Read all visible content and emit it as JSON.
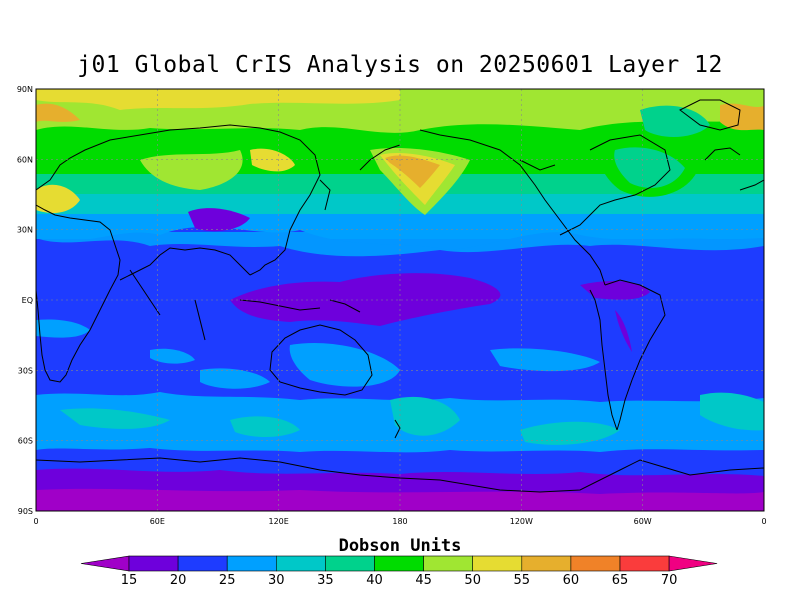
{
  "title": "j01 Global CrIS Analysis on 20250601 Layer 12",
  "map": {
    "projection": "equirectangular",
    "lon_range": [
      0,
      360
    ],
    "lat_range": [
      -90,
      90
    ],
    "grid": "dashed",
    "lat_labels": [
      "90N",
      "60N",
      "30N",
      "EQ",
      "30S",
      "60S",
      "90S"
    ],
    "lon_labels": [
      "0",
      "60E",
      "120E",
      "180",
      "120W",
      "60W",
      "0"
    ]
  },
  "colorbar": {
    "title": "Dobson Units",
    "levels": [
      15,
      20,
      25,
      30,
      35,
      40,
      45,
      50,
      55,
      60,
      65,
      70
    ],
    "colors": [
      "#a000c8",
      "#6e00dc",
      "#1e3cff",
      "#00a0ff",
      "#00c8c8",
      "#00d28c",
      "#00dc00",
      "#a0e632",
      "#e6dc32",
      "#e6af2d",
      "#f08228",
      "#fa3c3c",
      "#f00082"
    ]
  }
}
